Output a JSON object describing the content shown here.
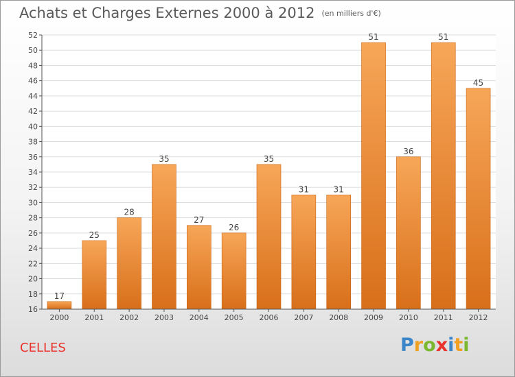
{
  "header": {
    "title": "Achats et Charges Externes 2000 à 2012",
    "subtitle": "(en milliers d'€)"
  },
  "footer": {
    "commune": "CELLES",
    "logo_text": "Proxiti",
    "logo_letters": [
      {
        "ch": "P",
        "color": "#3a86c8"
      },
      {
        "ch": "r",
        "color": "#f0a020"
      },
      {
        "ch": "o",
        "color": "#7cb82f"
      },
      {
        "ch": "x",
        "color": "#e8322b"
      },
      {
        "ch": "i",
        "color": "#3a86c8"
      },
      {
        "ch": "t",
        "color": "#f0a020"
      },
      {
        "ch": "i",
        "color": "#7cb82f"
      }
    ]
  },
  "colors": {
    "bar_top": "#f7a658",
    "bar_bottom": "#d86f1a",
    "bar_edge": "#c86414",
    "grid": "#dddddd",
    "axis": "#555555",
    "text": "#444444"
  },
  "chart_data": {
    "type": "bar",
    "title": "Achats et Charges Externes 2000 à 2012",
    "subtitle": "(en milliers d'€)",
    "categories": [
      "2000",
      "2001",
      "2002",
      "2003",
      "2004",
      "2005",
      "2006",
      "2007",
      "2008",
      "2009",
      "2010",
      "2011",
      "2012"
    ],
    "values": [
      17,
      25,
      28,
      35,
      27,
      26,
      35,
      31,
      31,
      51,
      36,
      51,
      45
    ],
    "ylim": [
      16,
      52
    ],
    "yticks": [
      16,
      18,
      20,
      22,
      24,
      26,
      28,
      30,
      32,
      34,
      36,
      38,
      40,
      42,
      44,
      46,
      48,
      50,
      52
    ],
    "grid": true,
    "data_labels": true
  }
}
